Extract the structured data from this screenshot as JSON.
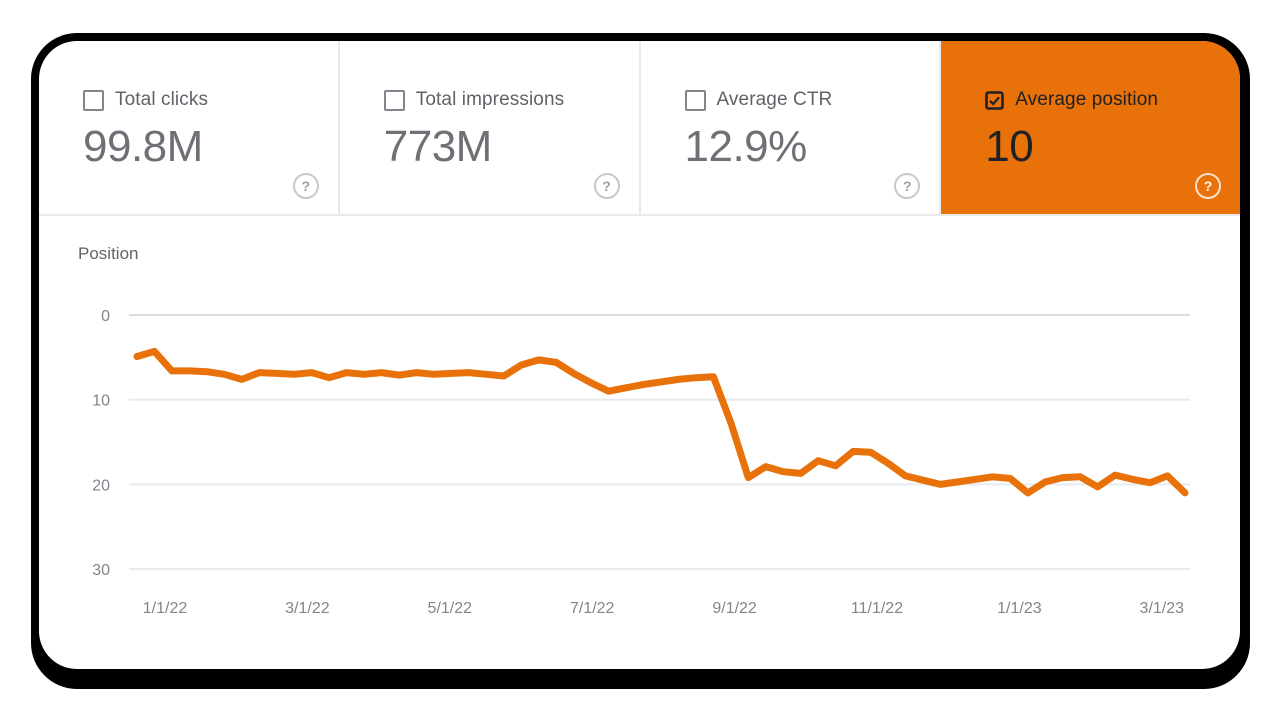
{
  "accent_color": "#e8710a",
  "metrics": [
    {
      "label": "Total clicks",
      "value": "99.8M",
      "checked": false,
      "help": "?"
    },
    {
      "label": "Total impressions",
      "value": "773M",
      "checked": false,
      "help": "?"
    },
    {
      "label": "Average CTR",
      "value": "12.9%",
      "checked": false,
      "help": "?"
    },
    {
      "label": "Average position",
      "value": "10",
      "checked": true,
      "help": "?"
    }
  ],
  "chart_data": {
    "type": "line",
    "title": "Position",
    "y_axis_inverted": true,
    "ylim": [
      0,
      30
    ],
    "y_ticks": [
      0,
      10,
      20,
      30
    ],
    "x_tick_labels": [
      "1/1/22",
      "3/1/22",
      "5/1/22",
      "7/1/22",
      "9/1/22",
      "11/1/22",
      "1/1/23",
      "3/1/23"
    ],
    "grid": "horizontal-only",
    "legend": "none",
    "tick_color": "#80868b",
    "grid_color": "#e8eaed",
    "grid_color_zero": "#dadce0",
    "series": [
      {
        "name": "Average position (weekly)",
        "color": "#e8710a",
        "values": [
          4.9,
          4.3,
          6.6,
          6.6,
          6.7,
          7.0,
          7.6,
          6.8,
          6.9,
          7.0,
          6.8,
          7.4,
          6.8,
          7.0,
          6.8,
          7.1,
          6.8,
          7.0,
          6.9,
          6.8,
          7.0,
          7.2,
          5.9,
          5.3,
          5.6,
          6.9,
          8.0,
          9.0,
          8.6,
          8.2,
          7.9,
          7.6,
          7.4,
          7.3,
          12.7,
          19.2,
          17.9,
          18.5,
          18.7,
          17.2,
          17.8,
          16.1,
          16.2,
          17.5,
          19.0,
          19.5,
          20.0,
          19.7,
          19.4,
          19.1,
          19.3,
          21.0,
          19.7,
          19.2,
          19.1,
          20.3,
          18.9,
          19.4,
          19.8,
          19.0,
          21.0
        ]
      }
    ]
  }
}
